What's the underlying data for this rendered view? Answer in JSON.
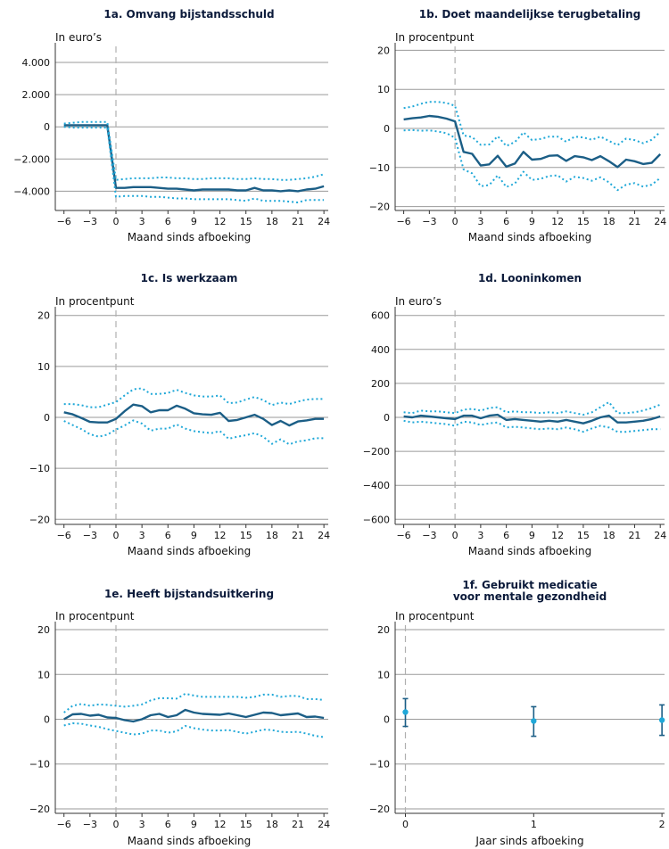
{
  "colors": {
    "estimate": "#1b5e86",
    "interval": "#20a8d8",
    "axis": "#333333",
    "grid": "#9a9a9a",
    "eventline": "#b0b0b0"
  },
  "chart_data": [
    {
      "id": "1a",
      "type": "line",
      "title": "1a. Omvang bijstandsschuld",
      "unit_label": "In euro’s",
      "xlabel": "Maand sinds afboeking",
      "ylim": [
        -5200,
        5000
      ],
      "yticks": [
        4000,
        2000,
        0,
        -2000,
        -4000
      ],
      "ytick_labels": [
        "4.000",
        "2.000",
        "0",
        "−2.000",
        "−4.000"
      ],
      "xticks": [
        -6,
        -3,
        0,
        3,
        6,
        9,
        12,
        15,
        18,
        21,
        24
      ],
      "xtick_labels": [
        "−6",
        "−3",
        "0",
        "3",
        "6",
        "9",
        "12",
        "15",
        "18",
        "21",
        "24"
      ],
      "xlim": [
        -7,
        24.5
      ],
      "event_x": 0,
      "x": [
        -6,
        -5,
        -4,
        -3,
        -2,
        -1,
        0,
        1,
        2,
        3,
        4,
        5,
        6,
        7,
        8,
        9,
        10,
        11,
        12,
        13,
        14,
        15,
        16,
        17,
        18,
        19,
        20,
        21,
        22,
        23,
        24
      ],
      "series": [
        {
          "role": "estimate",
          "values": [
            100,
            100,
            100,
            100,
            100,
            100,
            -3800,
            -3800,
            -3750,
            -3750,
            -3750,
            -3800,
            -3850,
            -3850,
            -3900,
            -3950,
            -3900,
            -3900,
            -3900,
            -3900,
            -3950,
            -3950,
            -3800,
            -3950,
            -3950,
            -4000,
            -3950,
            -4000,
            -3900,
            -3850,
            -3700
          ]
        },
        {
          "role": "upper",
          "values": [
            200,
            250,
            300,
            300,
            300,
            300,
            -3300,
            -3250,
            -3200,
            -3200,
            -3200,
            -3150,
            -3150,
            -3200,
            -3200,
            -3250,
            -3250,
            -3200,
            -3200,
            -3200,
            -3250,
            -3250,
            -3200,
            -3250,
            -3250,
            -3300,
            -3300,
            -3250,
            -3200,
            -3100,
            -2950
          ]
        },
        {
          "role": "lower",
          "values": [
            0,
            -50,
            -50,
            -50,
            -50,
            -50,
            -4350,
            -4300,
            -4300,
            -4300,
            -4350,
            -4350,
            -4400,
            -4450,
            -4450,
            -4500,
            -4500,
            -4500,
            -4500,
            -4500,
            -4550,
            -4600,
            -4450,
            -4600,
            -4600,
            -4600,
            -4650,
            -4700,
            -4550,
            -4550,
            -4550
          ]
        }
      ]
    },
    {
      "id": "1b",
      "type": "line",
      "title": "1b. Doet maandelijkse terugbetaling",
      "unit_label": "In procentpunt",
      "xlabel": "Maand sinds afboeking",
      "ylim": [
        -21,
        21
      ],
      "yticks": [
        20,
        10,
        0,
        -10,
        -20
      ],
      "ytick_labels": [
        "20",
        "10",
        "0",
        "−10",
        "−20"
      ],
      "xticks": [
        -6,
        -3,
        0,
        3,
        6,
        9,
        12,
        15,
        18,
        21,
        24
      ],
      "xtick_labels": [
        "−6",
        "−3",
        "0",
        "3",
        "6",
        "9",
        "12",
        "15",
        "18",
        "21",
        "24"
      ],
      "xlim": [
        -7,
        24.5
      ],
      "event_x": 0,
      "x": [
        -6,
        -5,
        -4,
        -3,
        -2,
        -1,
        0,
        1,
        2,
        3,
        4,
        5,
        6,
        7,
        8,
        9,
        10,
        11,
        12,
        13,
        14,
        15,
        16,
        17,
        18,
        19,
        20,
        21,
        22,
        23,
        24
      ],
      "series": [
        {
          "role": "estimate",
          "values": [
            2.3,
            2.6,
            2.8,
            3.2,
            3,
            2.5,
            1.8,
            -6,
            -6.5,
            -9.5,
            -9.2,
            -7,
            -9.8,
            -9,
            -6,
            -8,
            -7.8,
            -7,
            -6.9,
            -8.3,
            -7.1,
            -7.4,
            -8.1,
            -7.1,
            -8.4,
            -9.9,
            -8,
            -8.4,
            -9.1,
            -8.8,
            -6.6
          ]
        },
        {
          "role": "upper",
          "values": [
            5.2,
            5.6,
            6.3,
            6.8,
            6.8,
            6.5,
            5.8,
            -1.8,
            -2.2,
            -4.2,
            -4.1,
            -2,
            -4.5,
            -3.5,
            -1,
            -3,
            -2.7,
            -2.1,
            -2.1,
            -3.4,
            -2.1,
            -2.3,
            -2.9,
            -2.1,
            -3.2,
            -4.3,
            -2.6,
            -3,
            -3.8,
            -2.9,
            -0.9
          ]
        },
        {
          "role": "lower",
          "values": [
            -0.5,
            -0.4,
            -0.6,
            -0.5,
            -0.8,
            -1.2,
            -2.4,
            -10.5,
            -11.5,
            -14.8,
            -14.5,
            -12,
            -15,
            -14.1,
            -11.1,
            -13.2,
            -12.9,
            -12.2,
            -12,
            -13.6,
            -12.4,
            -12.7,
            -13.4,
            -12.5,
            -13.8,
            -15.8,
            -14.4,
            -14,
            -14.9,
            -14.4,
            -12.7
          ]
        }
      ]
    },
    {
      "id": "1c",
      "type": "line",
      "title": "1c. Is werkzaam",
      "unit_label": "In procentpunt",
      "xlabel": "Maand sinds afboeking",
      "ylim": [
        -21,
        21
      ],
      "yticks": [
        20,
        10,
        0,
        -10,
        -20
      ],
      "ytick_labels": [
        "20",
        "10",
        "0",
        "−10",
        "−20"
      ],
      "xticks": [
        -6,
        -3,
        0,
        3,
        6,
        9,
        12,
        15,
        18,
        21,
        24
      ],
      "xtick_labels": [
        "−6",
        "−3",
        "0",
        "3",
        "6",
        "9",
        "12",
        "15",
        "18",
        "21",
        "24"
      ],
      "xlim": [
        -7,
        24.5
      ],
      "event_x": 0,
      "x": [
        -6,
        -5,
        -4,
        -3,
        -2,
        -1,
        0,
        1,
        2,
        3,
        4,
        5,
        6,
        7,
        8,
        9,
        10,
        11,
        12,
        13,
        14,
        15,
        16,
        17,
        18,
        19,
        20,
        21,
        22,
        23,
        24
      ],
      "series": [
        {
          "role": "estimate",
          "values": [
            1,
            0.6,
            -0.1,
            -0.9,
            -1,
            -1,
            -0.3,
            1.2,
            2.5,
            2.2,
            1,
            1.4,
            1.4,
            2.3,
            1.7,
            0.8,
            0.6,
            0.5,
            0.9,
            -0.7,
            -0.5,
            0,
            0.5,
            -0.3,
            -1.5,
            -0.7,
            -1.6,
            -0.8,
            -0.6,
            -0.3,
            -0.3
          ]
        },
        {
          "role": "upper",
          "values": [
            2.6,
            2.6,
            2.4,
            2,
            2,
            2.5,
            3,
            4.3,
            5.5,
            5.7,
            4.6,
            4.6,
            4.8,
            5.4,
            4.8,
            4.3,
            4.1,
            4.1,
            4.3,
            2.8,
            2.9,
            3.5,
            4,
            3.4,
            2.4,
            2.9,
            2.6,
            3.1,
            3.5,
            3.6,
            3.6
          ]
        },
        {
          "role": "lower",
          "values": [
            -0.7,
            -1.5,
            -2.3,
            -3.3,
            -3.8,
            -3.4,
            -2.4,
            -1.6,
            -0.6,
            -1.2,
            -2.6,
            -2.2,
            -2.2,
            -1.4,
            -2.2,
            -2.7,
            -2.9,
            -3.1,
            -2.7,
            -4.2,
            -3.8,
            -3.5,
            -3.1,
            -3.8,
            -5.2,
            -4.3,
            -5.3,
            -4.7,
            -4.5,
            -4.1,
            -4.1
          ]
        }
      ]
    },
    {
      "id": "1d",
      "type": "line",
      "title": "1d. Looninkomen",
      "unit_label": "In euro’s",
      "xlabel": "Maand sinds afboeking",
      "ylim": [
        -630,
        630
      ],
      "yticks": [
        600,
        400,
        200,
        0,
        -200,
        -400,
        -600
      ],
      "ytick_labels": [
        "600",
        "400",
        "200",
        "0",
        "−200",
        "−400",
        "−600"
      ],
      "xticks": [
        -6,
        -3,
        0,
        3,
        6,
        9,
        12,
        15,
        18,
        21,
        24
      ],
      "xtick_labels": [
        "−6",
        "−3",
        "0",
        "3",
        "6",
        "9",
        "12",
        "15",
        "18",
        "21",
        "24"
      ],
      "xlim": [
        -7,
        24.5
      ],
      "event_x": 0,
      "x": [
        -6,
        -5,
        -4,
        -3,
        -2,
        -1,
        0,
        1,
        2,
        3,
        4,
        5,
        6,
        7,
        8,
        9,
        10,
        11,
        12,
        13,
        14,
        15,
        16,
        17,
        18,
        19,
        20,
        21,
        22,
        23,
        24
      ],
      "series": [
        {
          "role": "estimate",
          "values": [
            5,
            0,
            10,
            5,
            0,
            -5,
            -10,
            10,
            10,
            -5,
            10,
            15,
            -15,
            -10,
            -15,
            -20,
            -25,
            -20,
            -25,
            -15,
            -25,
            -35,
            -20,
            0,
            10,
            -30,
            -30,
            -25,
            -20,
            -10,
            5
          ]
        },
        {
          "role": "upper",
          "values": [
            30,
            25,
            40,
            35,
            35,
            30,
            25,
            45,
            50,
            40,
            55,
            60,
            30,
            35,
            30,
            30,
            25,
            30,
            25,
            35,
            25,
            15,
            30,
            60,
            90,
            25,
            25,
            30,
            40,
            55,
            75
          ]
        },
        {
          "role": "lower",
          "values": [
            -20,
            -30,
            -25,
            -30,
            -35,
            -40,
            -50,
            -25,
            -30,
            -45,
            -35,
            -30,
            -60,
            -55,
            -60,
            -65,
            -70,
            -65,
            -70,
            -60,
            -70,
            -85,
            -65,
            -50,
            -60,
            -85,
            -85,
            -80,
            -75,
            -70,
            -70
          ]
        }
      ]
    },
    {
      "id": "1e",
      "type": "line",
      "title": "1e. Heeft bijstandsuitkering",
      "unit_label": "In procentpunt",
      "xlabel": "Maand sinds afboeking",
      "ylim": [
        -21,
        21
      ],
      "yticks": [
        20,
        10,
        0,
        -10,
        -20
      ],
      "ytick_labels": [
        "20",
        "10",
        "0",
        "−10",
        "−20"
      ],
      "xticks": [
        -6,
        -3,
        0,
        3,
        6,
        9,
        12,
        15,
        18,
        21,
        24
      ],
      "xtick_labels": [
        "−6",
        "−3",
        "0",
        "3",
        "6",
        "9",
        "12",
        "15",
        "18",
        "21",
        "24"
      ],
      "xlim": [
        -7,
        24.5
      ],
      "event_x": 0,
      "x": [
        -6,
        -5,
        -4,
        -3,
        -2,
        -1,
        0,
        1,
        2,
        3,
        4,
        5,
        6,
        7,
        8,
        9,
        10,
        11,
        12,
        13,
        14,
        15,
        16,
        17,
        18,
        19,
        20,
        21,
        22,
        23,
        24
      ],
      "series": [
        {
          "role": "estimate",
          "values": [
            0,
            1.1,
            1.2,
            0.8,
            1,
            0.4,
            0.3,
            -0.2,
            -0.5,
            0,
            0.9,
            1.2,
            0.5,
            0.9,
            2.1,
            1.5,
            1.2,
            1.1,
            1,
            1.3,
            0.9,
            0.5,
            1,
            1.5,
            1.4,
            0.9,
            1.1,
            1.3,
            0.5,
            0.6,
            0.3
          ]
        },
        {
          "role": "upper",
          "values": [
            1.5,
            3,
            3.4,
            3,
            3.3,
            3.2,
            3,
            2.8,
            3,
            3.3,
            4.2,
            4.7,
            4.7,
            4.6,
            5.7,
            5.3,
            5,
            5,
            5,
            5,
            5,
            4.8,
            5,
            5.5,
            5.5,
            5,
            5.2,
            5.2,
            4.5,
            4.5,
            4.3
          ]
        },
        {
          "role": "lower",
          "values": [
            -1.4,
            -0.9,
            -1,
            -1.4,
            -1.7,
            -2.2,
            -2.6,
            -3,
            -3.4,
            -3.2,
            -2.5,
            -2.5,
            -3,
            -2.7,
            -1.5,
            -2,
            -2.3,
            -2.5,
            -2.5,
            -2.4,
            -2.8,
            -3.2,
            -2.8,
            -2.3,
            -2.4,
            -2.8,
            -2.9,
            -2.8,
            -3.2,
            -3.7,
            -4
          ]
        }
      ]
    },
    {
      "id": "1f",
      "type": "scatter",
      "title": "1f. Gebruikt medicatie voor mentale gezondheid",
      "title_lines": [
        "1f. Gebruikt medicatie",
        "voor mentale gezondheid"
      ],
      "unit_label": "In procentpunt",
      "xlabel": "Jaar sinds afboeking",
      "ylim": [
        -21,
        21
      ],
      "yticks": [
        20,
        10,
        0,
        -10,
        -20
      ],
      "ytick_labels": [
        "20",
        "10",
        "0",
        "−10",
        "−20"
      ],
      "xticks": [
        0,
        1,
        2
      ],
      "xtick_labels": [
        "0",
        "1",
        "2"
      ],
      "xlim": [
        -0.08,
        2.02
      ],
      "event_x": 0,
      "points": [
        {
          "x": 0,
          "y": 1.6,
          "low": -1.6,
          "high": 4.6
        },
        {
          "x": 1,
          "y": -0.4,
          "low": -3.8,
          "high": 2.8
        },
        {
          "x": 2,
          "y": -0.2,
          "low": -3.6,
          "high": 3.2
        }
      ]
    }
  ]
}
